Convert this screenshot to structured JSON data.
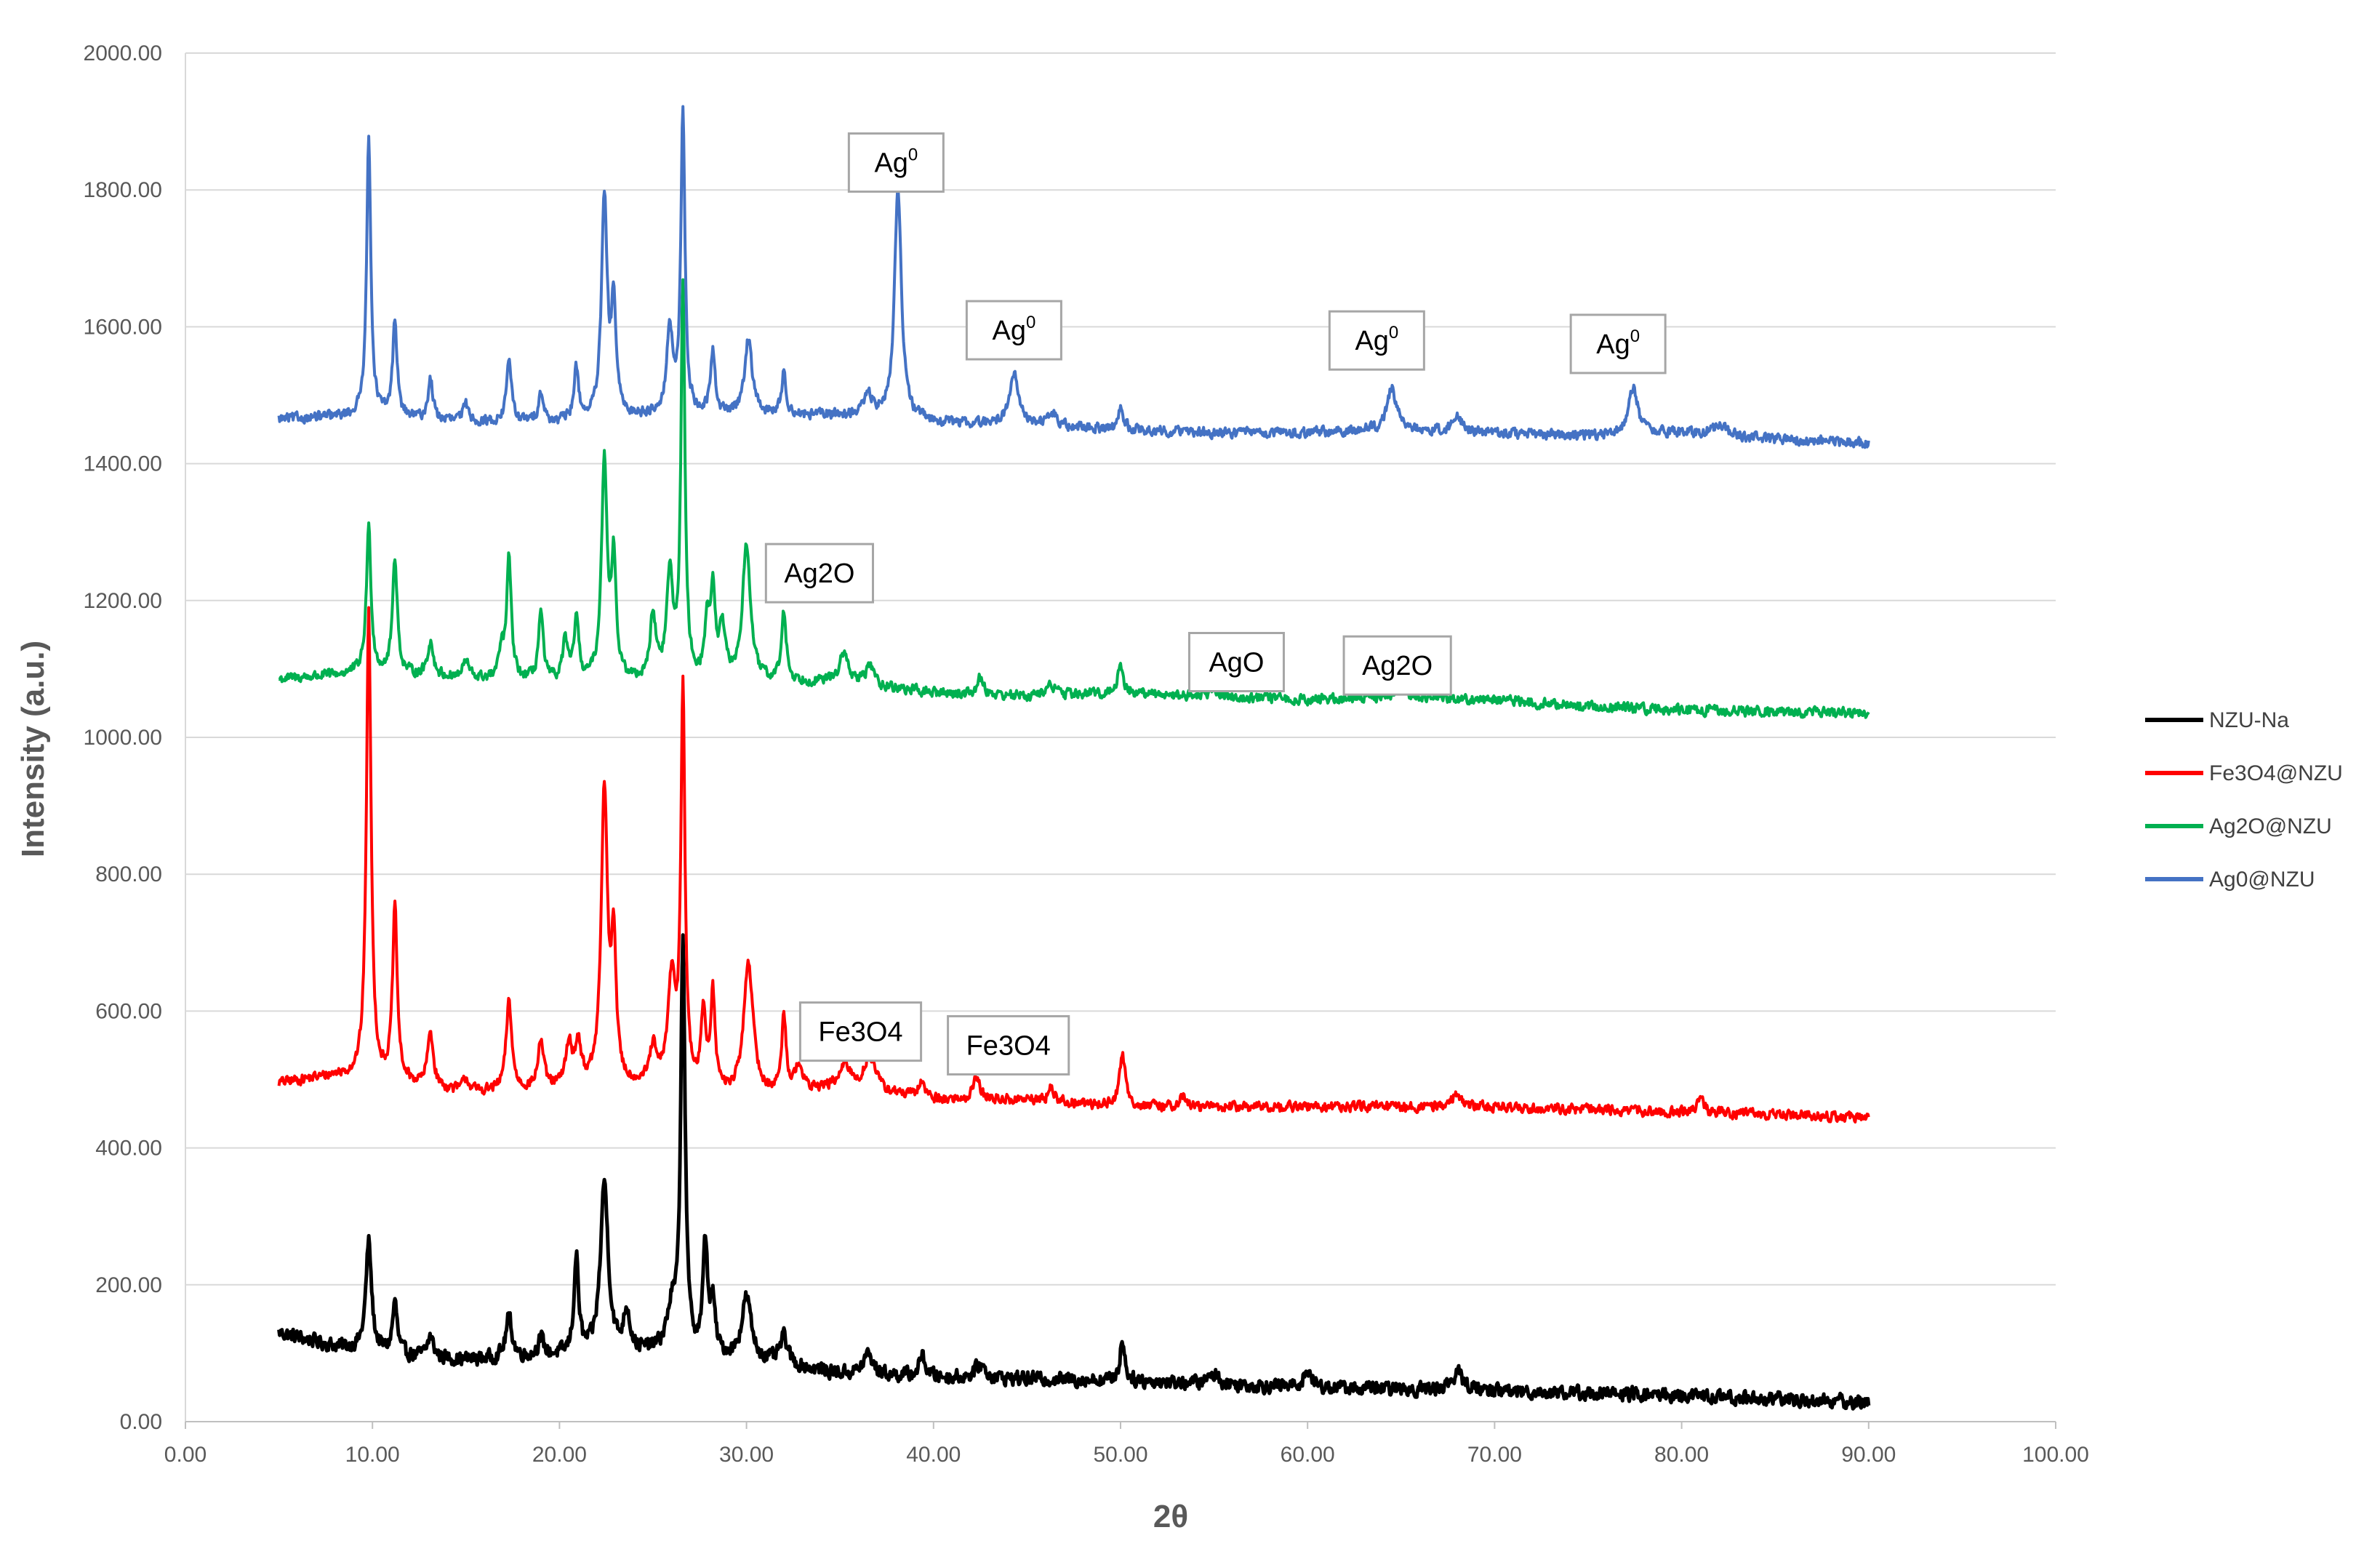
{
  "chart_data": {
    "type": "line",
    "title": "",
    "xlabel": "2θ",
    "ylabel": "Intensity (a.u.)",
    "xlim": [
      0,
      100
    ],
    "ylim": [
      0,
      2000
    ],
    "x_ticks": [
      "0.00",
      "10.00",
      "20.00",
      "30.00",
      "40.00",
      "50.00",
      "60.00",
      "70.00",
      "80.00",
      "90.00",
      "100.00"
    ],
    "y_ticks": [
      "0.00",
      "200.00",
      "400.00",
      "600.00",
      "800.00",
      "1000.00",
      "1200.00",
      "1400.00",
      "1600.00",
      "1800.00",
      "2000.00"
    ],
    "grid": "horizontal",
    "legend": "right",
    "x_range": [
      5,
      90
    ],
    "series": [
      {
        "name": "NZU-Na",
        "color": "#000000",
        "baseline": [
          [
            5,
            130
          ],
          [
            8,
            110
          ],
          [
            12,
            95
          ],
          [
            15,
            90
          ],
          [
            20,
            95
          ],
          [
            25,
            100
          ],
          [
            30,
            90
          ],
          [
            35,
            70
          ],
          [
            40,
            65
          ],
          [
            50,
            60
          ],
          [
            60,
            50
          ],
          [
            70,
            45
          ],
          [
            80,
            38
          ],
          [
            90,
            28
          ]
        ],
        "noise": 14,
        "peaks": [
          [
            9.8,
            160,
            0.18
          ],
          [
            11.2,
            75,
            0.15
          ],
          [
            13.1,
            30,
            0.2
          ],
          [
            17.3,
            60,
            0.2
          ],
          [
            19.0,
            25,
            0.2
          ],
          [
            20.9,
            140,
            0.15
          ],
          [
            22.4,
            250,
            0.25
          ],
          [
            23.6,
            60,
            0.2
          ],
          [
            26.0,
            60,
            0.3
          ],
          [
            26.6,
            600,
            0.14
          ],
          [
            27.8,
            160,
            0.15
          ],
          [
            28.2,
            70,
            0.15
          ],
          [
            30.0,
            90,
            0.3
          ],
          [
            32.0,
            40,
            0.25
          ],
          [
            36.5,
            30,
            0.3
          ],
          [
            39.4,
            30,
            0.2
          ],
          [
            42.5,
            20,
            0.3
          ],
          [
            50.1,
            60,
            0.15
          ],
          [
            55.0,
            15,
            0.3
          ],
          [
            60.0,
            25,
            0.25
          ],
          [
            68.0,
            25,
            0.4
          ]
        ]
      },
      {
        "name": "Fe3O4@NZU",
        "color": "#ff0000",
        "baseline": [
          [
            5,
            495
          ],
          [
            8,
            505
          ],
          [
            10,
            500
          ],
          [
            15,
            480
          ],
          [
            20,
            485
          ],
          [
            25,
            490
          ],
          [
            30,
            470
          ],
          [
            35,
            490
          ],
          [
            40,
            470
          ],
          [
            45,
            470
          ],
          [
            50,
            460
          ],
          [
            60,
            460
          ],
          [
            70,
            460
          ],
          [
            80,
            452
          ],
          [
            90,
            445
          ]
        ],
        "noise": 10,
        "peaks": [
          [
            9.8,
            680,
            0.15
          ],
          [
            11.2,
            250,
            0.15
          ],
          [
            13.1,
            80,
            0.18
          ],
          [
            15.0,
            20,
            0.2
          ],
          [
            17.3,
            130,
            0.18
          ],
          [
            19.0,
            70,
            0.18
          ],
          [
            20.5,
            60,
            0.2
          ],
          [
            21.0,
            60,
            0.2
          ],
          [
            22.4,
            430,
            0.2
          ],
          [
            22.9,
            200,
            0.15
          ],
          [
            25.0,
            50,
            0.2
          ],
          [
            26.0,
            150,
            0.25
          ],
          [
            26.6,
            580,
            0.13
          ],
          [
            27.7,
            110,
            0.15
          ],
          [
            28.2,
            140,
            0.15
          ],
          [
            30.1,
            200,
            0.3
          ],
          [
            32.0,
            110,
            0.15
          ],
          [
            32.8,
            40,
            0.2
          ],
          [
            35.3,
            30,
            0.3
          ],
          [
            36.6,
            50,
            0.35
          ],
          [
            39.4,
            25,
            0.2
          ],
          [
            42.3,
            35,
            0.2
          ],
          [
            46.3,
            20,
            0.2
          ],
          [
            50.1,
            75,
            0.2
          ],
          [
            53.3,
            15,
            0.2
          ],
          [
            68.0,
            20,
            0.3
          ],
          [
            81.0,
            25,
            0.2
          ]
        ]
      },
      {
        "name": "Ag2O@NZU",
        "color": "#00b050",
        "baseline": [
          [
            5,
            1085
          ],
          [
            10,
            1095
          ],
          [
            15,
            1085
          ],
          [
            20,
            1080
          ],
          [
            25,
            1080
          ],
          [
            30,
            1080
          ],
          [
            35,
            1080
          ],
          [
            40,
            1065
          ],
          [
            45,
            1060
          ],
          [
            50,
            1065
          ],
          [
            55,
            1060
          ],
          [
            60,
            1055
          ],
          [
            65,
            1060
          ],
          [
            70,
            1055
          ],
          [
            75,
            1045
          ],
          [
            80,
            1040
          ],
          [
            90,
            1035
          ]
        ],
        "noise": 10,
        "peaks": [
          [
            9.8,
            210,
            0.15
          ],
          [
            11.2,
            170,
            0.15
          ],
          [
            13.1,
            50,
            0.18
          ],
          [
            15.0,
            25,
            0.2
          ],
          [
            16.9,
            40,
            0.15
          ],
          [
            17.3,
            175,
            0.15
          ],
          [
            19.0,
            100,
            0.15
          ],
          [
            20.3,
            60,
            0.15
          ],
          [
            20.9,
            90,
            0.15
          ],
          [
            22.4,
            320,
            0.18
          ],
          [
            22.9,
            170,
            0.15
          ],
          [
            25.0,
            90,
            0.2
          ],
          [
            25.9,
            150,
            0.2
          ],
          [
            26.6,
            570,
            0.13
          ],
          [
            27.9,
            80,
            0.15
          ],
          [
            28.2,
            120,
            0.15
          ],
          [
            28.7,
            70,
            0.2
          ],
          [
            30.0,
            200,
            0.25
          ],
          [
            32.0,
            100,
            0.15
          ],
          [
            35.2,
            40,
            0.3
          ],
          [
            36.6,
            30,
            0.25
          ],
          [
            42.5,
            25,
            0.2
          ],
          [
            46.3,
            15,
            0.3
          ],
          [
            50.0,
            45,
            0.15
          ],
          [
            55.0,
            10,
            0.3
          ],
          [
            65.0,
            15,
            0.3
          ]
        ]
      },
      {
        "name": "Ag0@NZU",
        "color": "#4472c4",
        "baseline": [
          [
            5,
            1465
          ],
          [
            10,
            1470
          ],
          [
            15,
            1460
          ],
          [
            20,
            1460
          ],
          [
            25,
            1470
          ],
          [
            30,
            1470
          ],
          [
            35,
            1470
          ],
          [
            40,
            1460
          ],
          [
            45,
            1455
          ],
          [
            50,
            1450
          ],
          [
            55,
            1445
          ],
          [
            60,
            1445
          ],
          [
            65,
            1450
          ],
          [
            70,
            1445
          ],
          [
            75,
            1440
          ],
          [
            80,
            1445
          ],
          [
            85,
            1435
          ],
          [
            90,
            1430
          ]
        ],
        "noise": 10,
        "peaks": [
          [
            9.8,
            400,
            0.14
          ],
          [
            11.2,
            140,
            0.14
          ],
          [
            13.1,
            60,
            0.15
          ],
          [
            15.0,
            25,
            0.2
          ],
          [
            17.3,
            95,
            0.15
          ],
          [
            19.0,
            45,
            0.15
          ],
          [
            20.9,
            75,
            0.15
          ],
          [
            22.4,
            320,
            0.18
          ],
          [
            22.9,
            160,
            0.15
          ],
          [
            25.9,
            120,
            0.2
          ],
          [
            26.6,
            440,
            0.13
          ],
          [
            28.2,
            90,
            0.15
          ],
          [
            30.1,
            110,
            0.25
          ],
          [
            32.0,
            60,
            0.15
          ],
          [
            36.5,
            30,
            0.3
          ],
          [
            38.1,
            340,
            0.22
          ],
          [
            44.3,
            75,
            0.3
          ],
          [
            46.3,
            20,
            0.3
          ],
          [
            50.0,
            35,
            0.15
          ],
          [
            64.5,
            60,
            0.3
          ],
          [
            68.0,
            20,
            0.3
          ],
          [
            77.4,
            70,
            0.3
          ],
          [
            82.0,
            15,
            0.5
          ]
        ]
      }
    ],
    "annotations": [
      {
        "text": "Ag",
        "sup": "0",
        "x": 38.0,
        "y": 1840
      },
      {
        "text": "Ag",
        "sup": "0",
        "x": 44.3,
        "y": 1595
      },
      {
        "text": "Ag",
        "sup": "0",
        "x": 63.7,
        "y": 1580
      },
      {
        "text": "Ag",
        "sup": "0",
        "x": 76.6,
        "y": 1575
      },
      {
        "text": "Ag2O",
        "x": 33.9,
        "y": 1240
      },
      {
        "text": "AgO",
        "x": 56.2,
        "y": 1110
      },
      {
        "text": "Ag2O",
        "x": 64.8,
        "y": 1105
      },
      {
        "text": "Fe3O4",
        "x": 36.1,
        "y": 570
      },
      {
        "text": "Fe3O4",
        "x": 44.0,
        "y": 550
      }
    ]
  }
}
